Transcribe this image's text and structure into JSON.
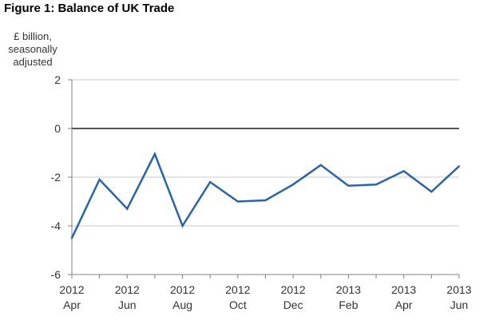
{
  "title": "Figure 1: Balance of UK Trade",
  "ylabel_lines": [
    "£ billion,",
    "seasonally",
    "adjusted"
  ],
  "colors": {
    "line": "#2a64a8",
    "grid": "#c8c8c8",
    "zero": "#555555",
    "axis": "#808080"
  },
  "chart_data": {
    "type": "line",
    "title": "Figure 1: Balance of UK Trade",
    "ylabel": "£ billion, seasonally adjusted",
    "xlabel": "",
    "ylim": [
      -6,
      2
    ],
    "yticks": [
      2,
      0,
      -2,
      -4,
      -6
    ],
    "grid": true,
    "x": [
      "2012 Apr",
      "2012 May",
      "2012 Jun",
      "2012 Jul",
      "2012 Aug",
      "2012 Sep",
      "2012 Oct",
      "2012 Nov",
      "2012 Dec",
      "2013 Jan",
      "2013 Feb",
      "2013 Mar",
      "2013 Apr",
      "2013 May",
      "2013 Jun"
    ],
    "xtick_labels": [
      {
        "year": "2012",
        "month": "Apr"
      },
      {
        "year": "2012",
        "month": "Jun"
      },
      {
        "year": "2012",
        "month": "Aug"
      },
      {
        "year": "2012",
        "month": "Oct"
      },
      {
        "year": "2012",
        "month": "Dec"
      },
      {
        "year": "2013",
        "month": "Feb"
      },
      {
        "year": "2013",
        "month": "Apr"
      },
      {
        "year": "2013",
        "month": "Jun"
      }
    ],
    "series": [
      {
        "values": [
          -4.5,
          -2.1,
          -3.3,
          -1.05,
          -4.0,
          -2.2,
          -3.0,
          -2.95,
          -2.3,
          -1.5,
          -2.35,
          -2.3,
          -1.75,
          -2.6,
          -1.55
        ]
      }
    ]
  }
}
